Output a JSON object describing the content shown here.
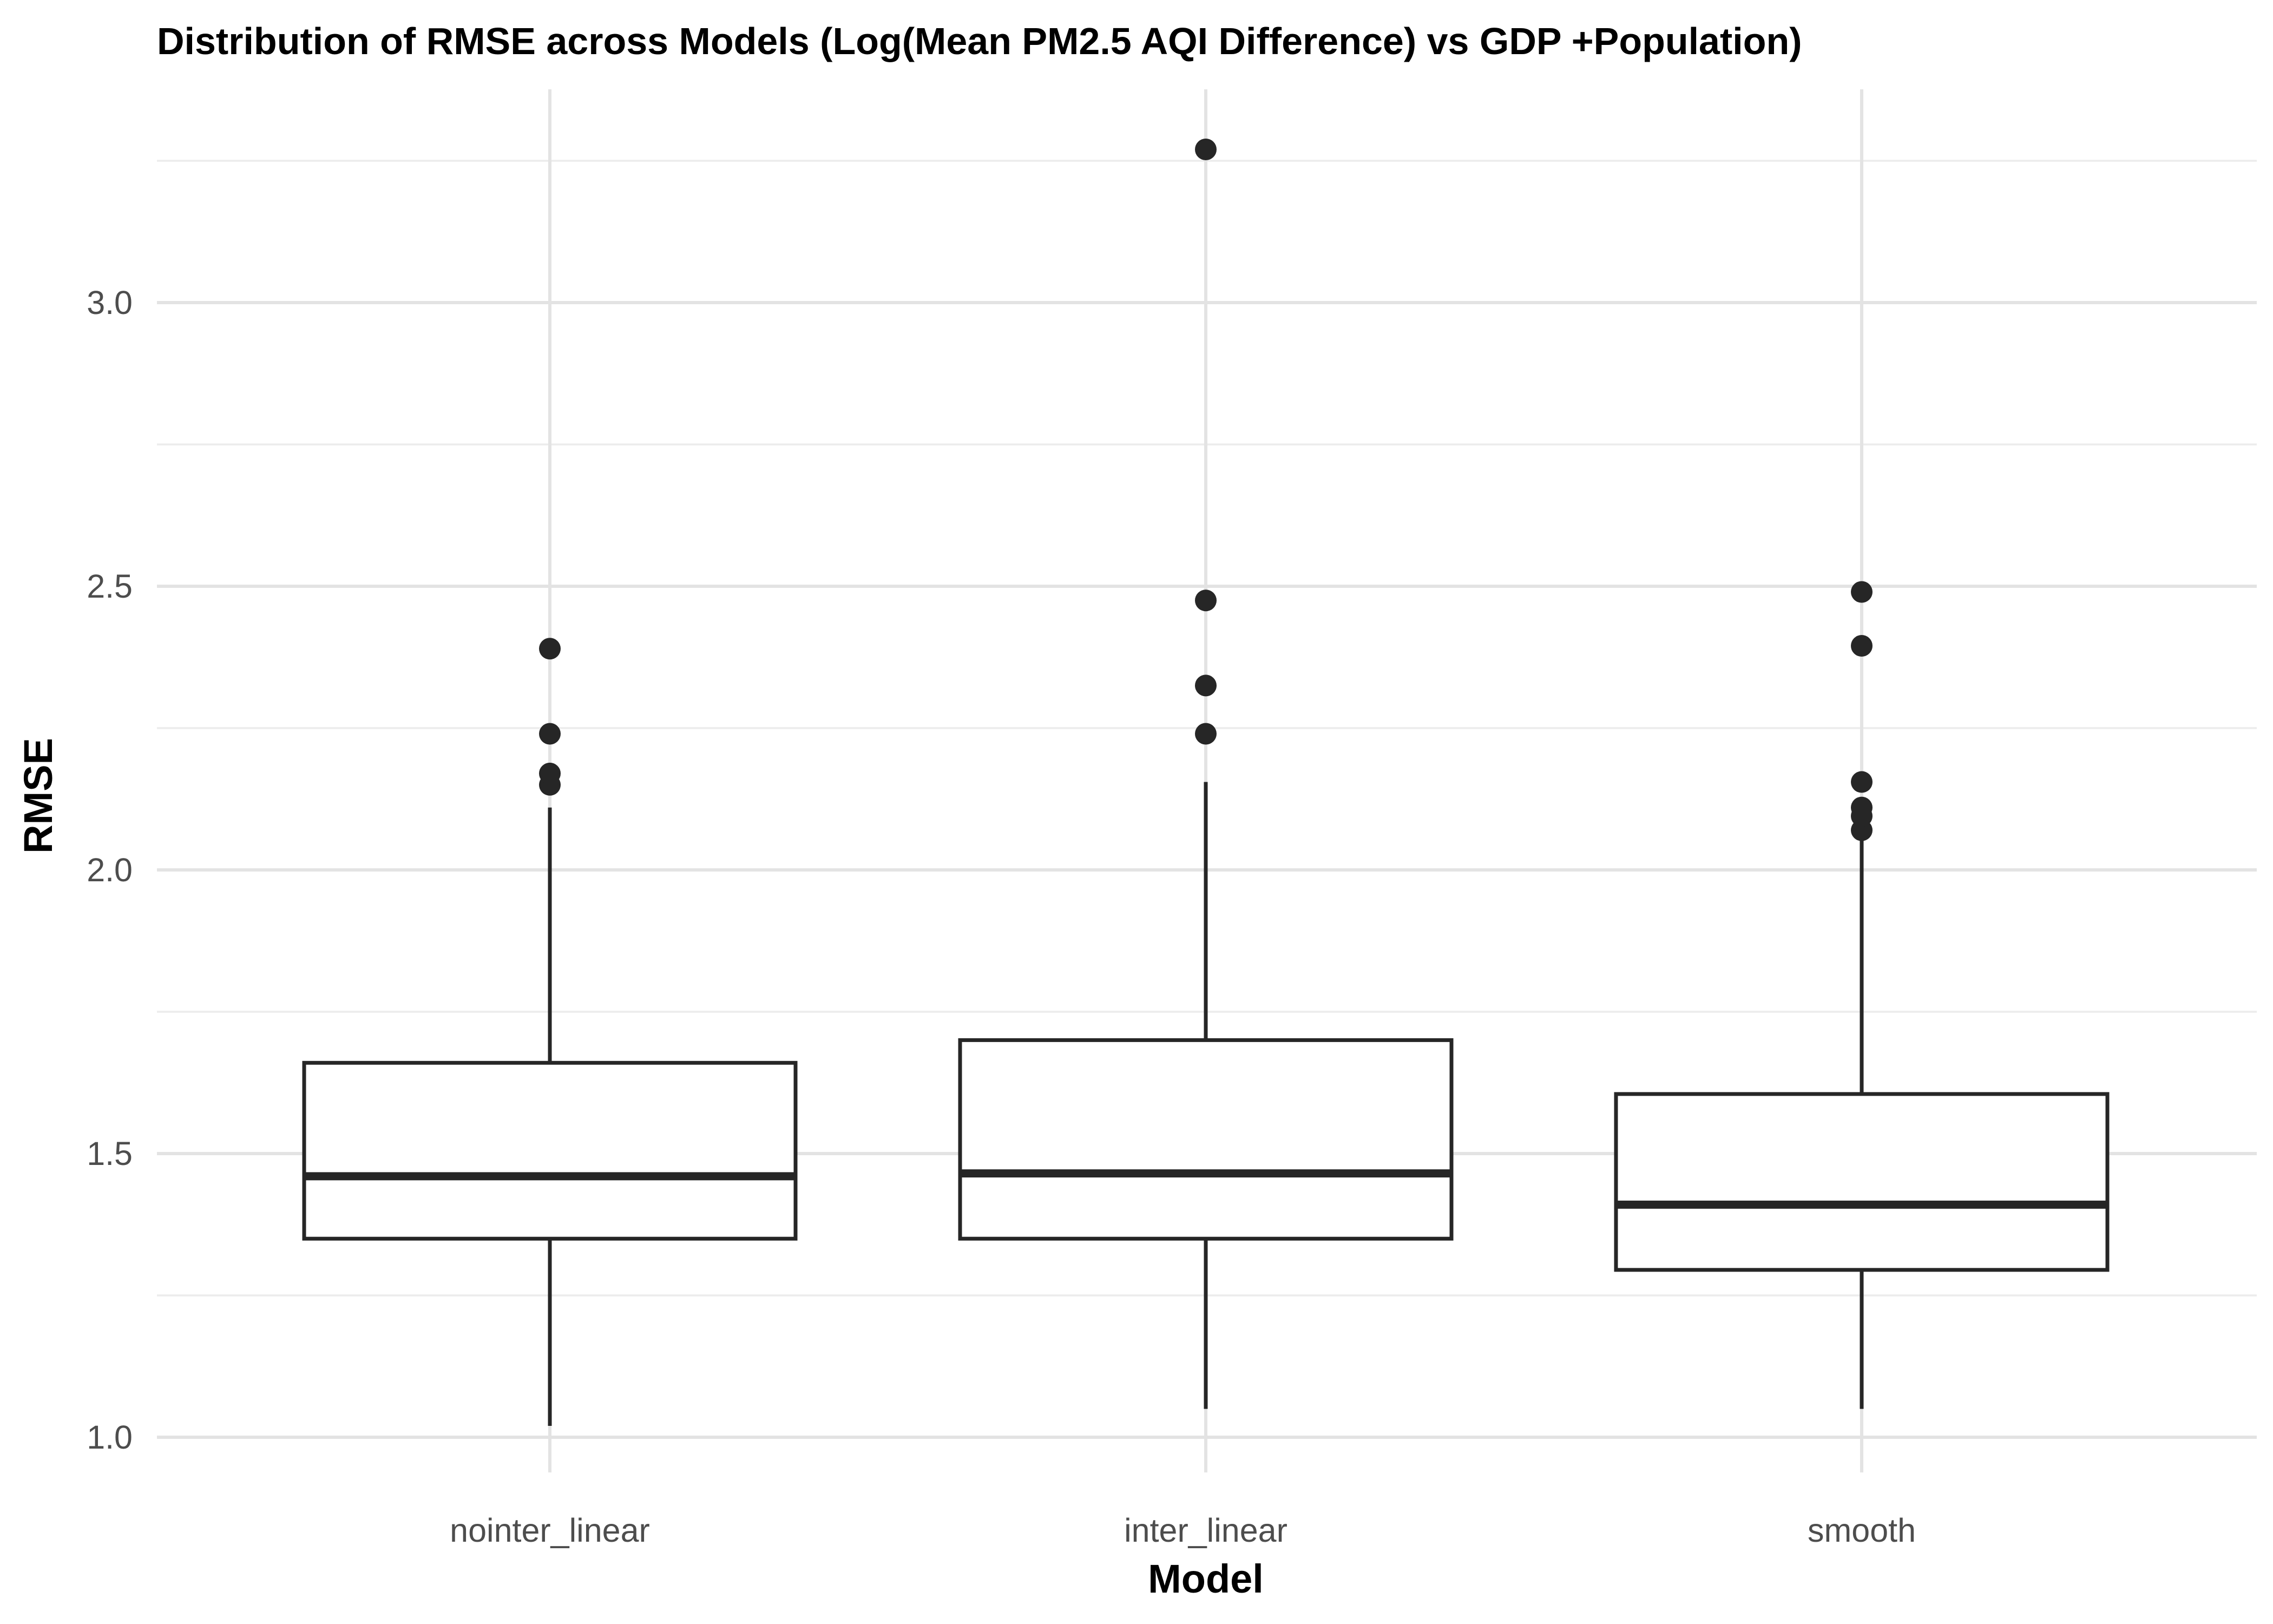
{
  "chart_data": {
    "type": "boxplot",
    "title": "Distribution of RMSE across Models (Log(Mean PM2.5 AQI Difference) vs GDP +Population)",
    "xlabel": "Model",
    "ylabel": "RMSE",
    "categories": [
      "nointer_linear",
      "inter_linear",
      "smooth"
    ],
    "ylim": [
      0.95,
      3.3
    ],
    "yticks": [
      1.0,
      1.5,
      2.0,
      2.5,
      3.0
    ],
    "ytick_labels": [
      "1.0",
      "1.5",
      "2.0",
      "2.5",
      "3.0"
    ],
    "grid": true,
    "legend": "none",
    "boxes": [
      {
        "category": "nointer_linear",
        "whisker_low": 1.02,
        "q1": 1.35,
        "median": 1.46,
        "q3": 1.66,
        "whisker_high": 2.11,
        "outliers": [
          2.15,
          2.17,
          2.24,
          2.39
        ]
      },
      {
        "category": "inter_linear",
        "whisker_low": 1.05,
        "q1": 1.35,
        "median": 1.465,
        "q3": 1.7,
        "whisker_high": 2.155,
        "outliers": [
          2.24,
          2.325,
          2.475,
          3.27
        ]
      },
      {
        "category": "smooth",
        "whisker_low": 1.05,
        "q1": 1.295,
        "median": 1.41,
        "q3": 1.605,
        "whisker_high": 2.06,
        "outliers": [
          2.07,
          2.095,
          2.11,
          2.155,
          2.395,
          2.49
        ]
      }
    ],
    "colors": {
      "box_line": "#262626",
      "box_fill": "#ffffff",
      "grid": "#e3e3e3",
      "background": "#ffffff"
    }
  }
}
